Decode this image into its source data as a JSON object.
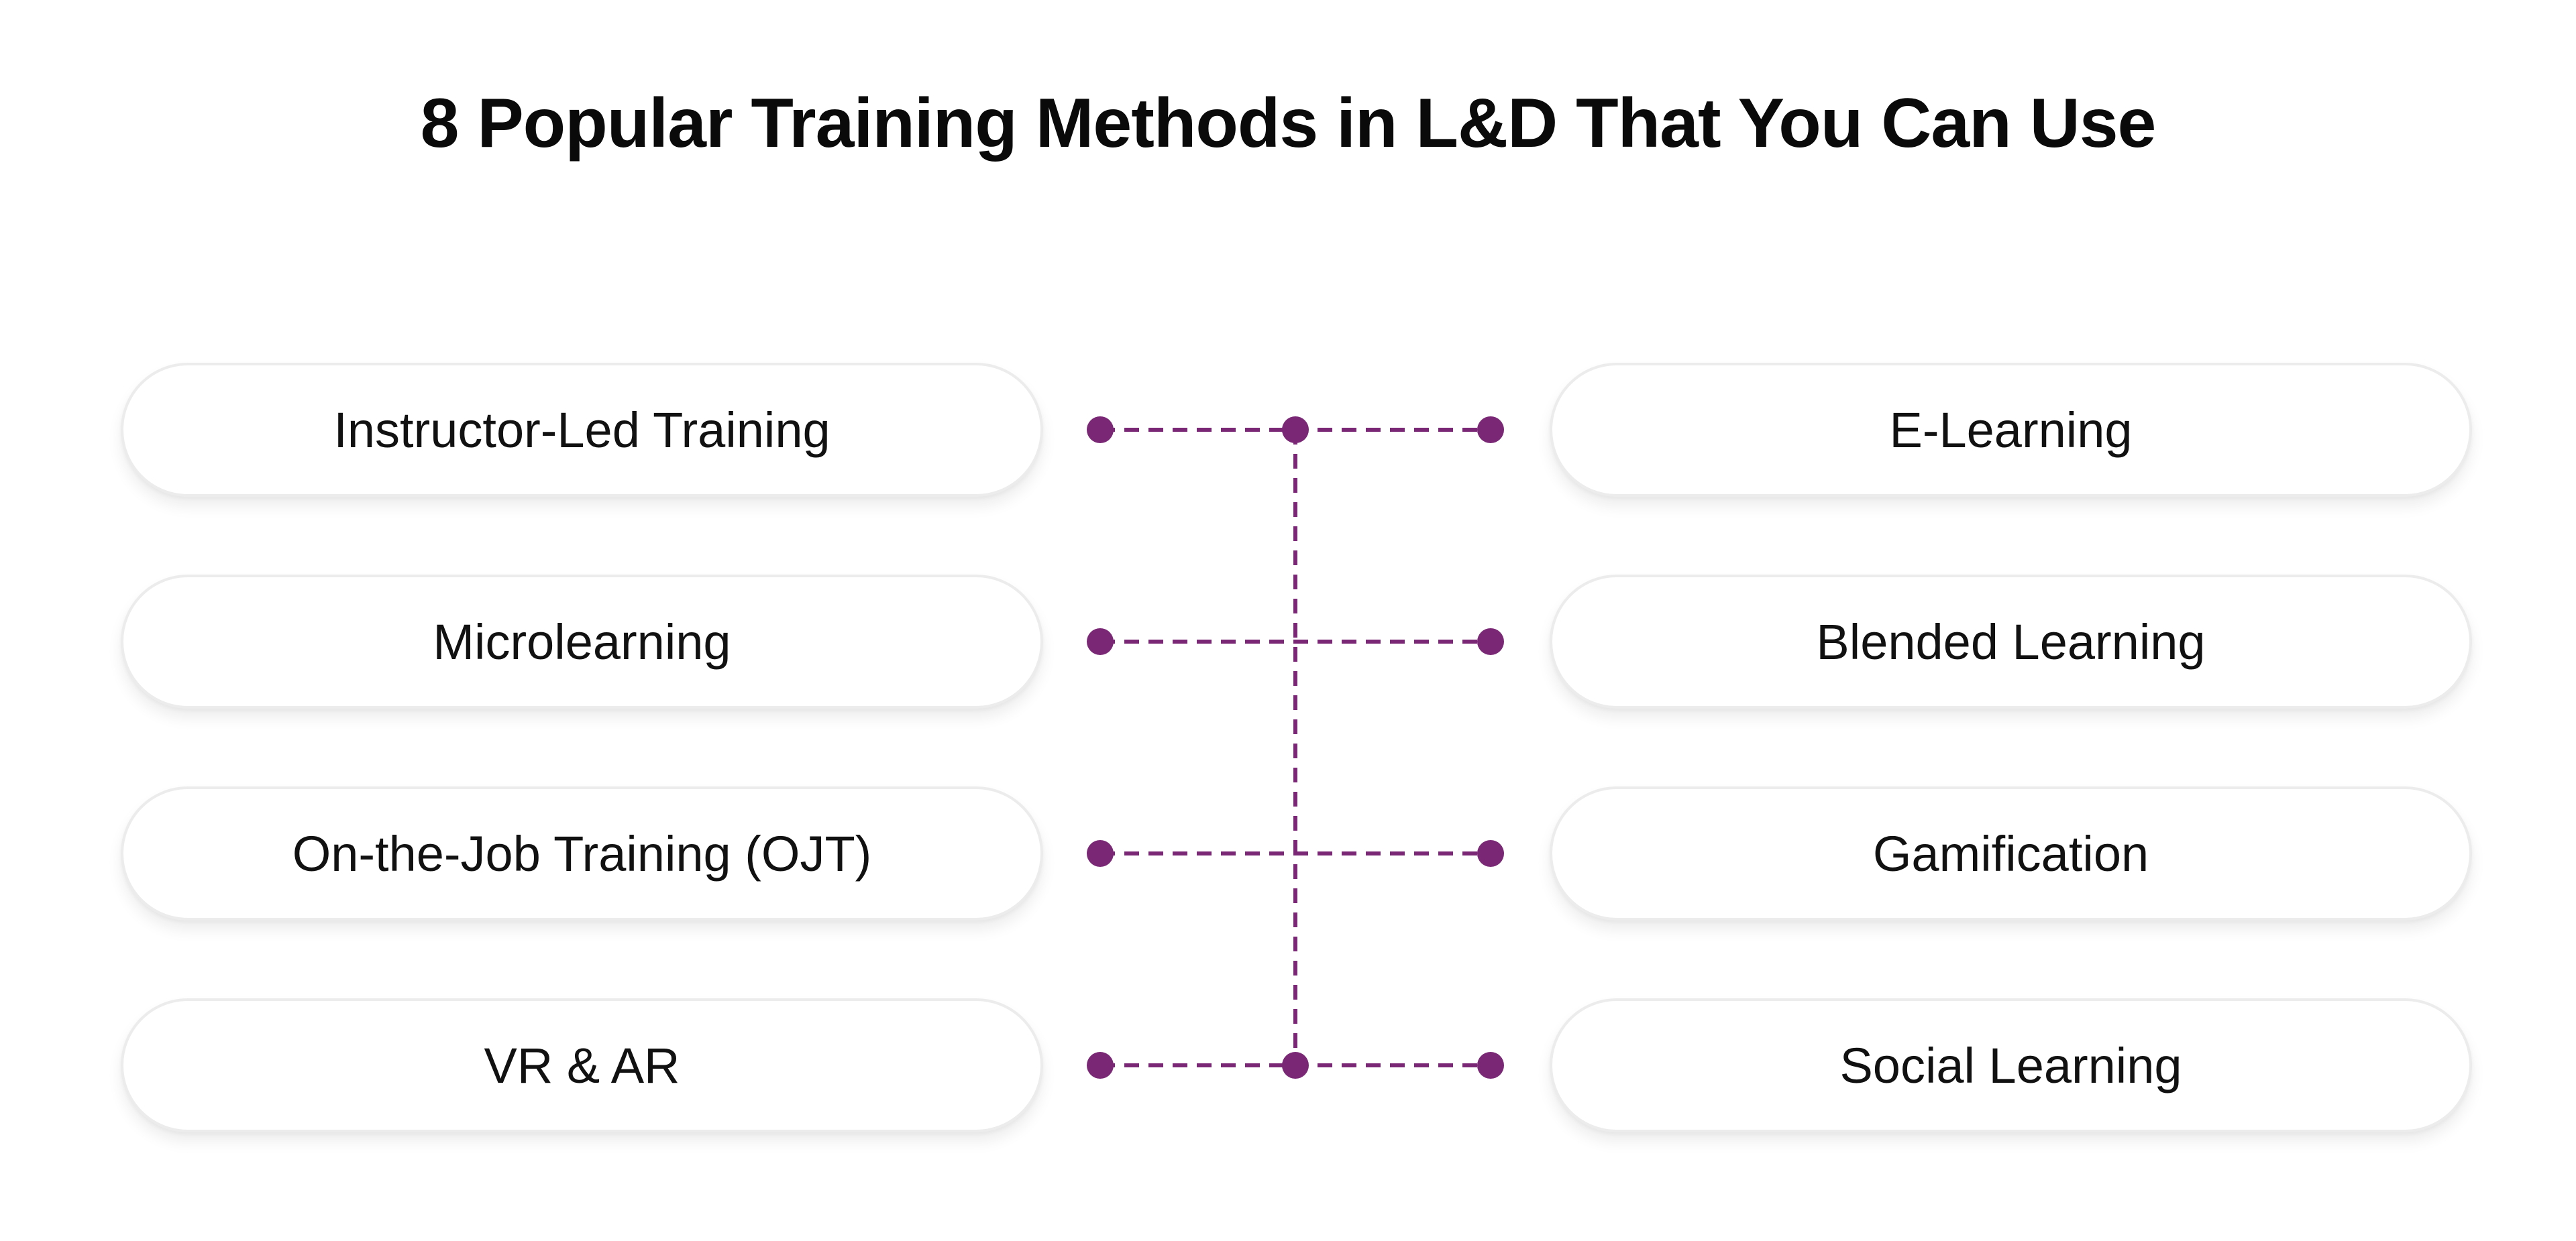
{
  "title": "8 Popular Training Methods in L&D That You Can Use",
  "colors": {
    "accent": "#7a2876",
    "pill_border": "#ececec",
    "background": "#ffffff"
  },
  "left_methods": [
    "Instructor-Led Training",
    "Microlearning",
    "On-the-Job Training (OJT)",
    "VR & AR"
  ],
  "right_methods": [
    "E-Learning",
    "Blended Learning",
    "Gamification",
    "Social Learning"
  ]
}
